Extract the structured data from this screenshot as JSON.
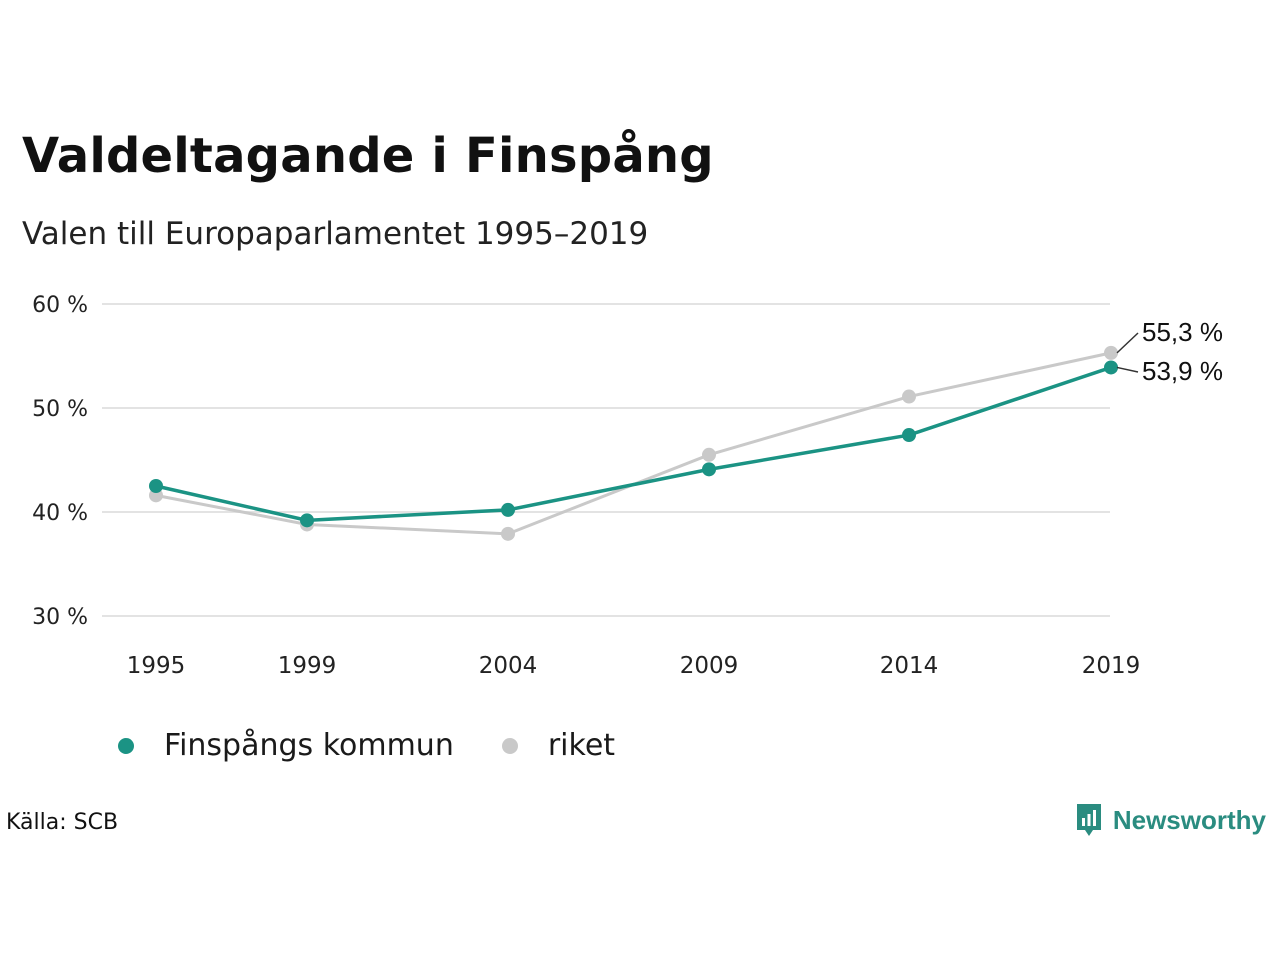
{
  "title": "Valdeltagande i Finspång",
  "subtitle": "Valen till Europaparlamentet 1995–2019",
  "source": "Källa: SCB",
  "brand": "Newsworthy",
  "colors": {
    "kommun": "#1b9384",
    "riket": "#c9c9c9",
    "grid": "#e3e3e3"
  },
  "chart_data": {
    "type": "line",
    "title": "Valdeltagande i Finspång",
    "subtitle": "Valen till Europaparlamentet 1995–2019",
    "x": [
      1995,
      1999,
      2004,
      2009,
      2014,
      2019
    ],
    "x_tick_labels": [
      "1995",
      "1999",
      "2004",
      "2009",
      "2014",
      "2019"
    ],
    "y_ticks": [
      30,
      40,
      50,
      60
    ],
    "y_tick_labels": [
      "30 %",
      "40 %",
      "50 %",
      "60 %"
    ],
    "ylim": [
      30,
      60
    ],
    "grid": true,
    "legend": "bottom",
    "series": [
      {
        "name": "Finspångs kommun",
        "values": [
          42.5,
          39.2,
          40.2,
          44.1,
          47.4,
          53.9
        ],
        "end_label": "53,9 %"
      },
      {
        "name": "riket",
        "values": [
          41.6,
          38.8,
          37.9,
          45.5,
          51.1,
          55.3
        ],
        "end_label": "55,3 %"
      }
    ]
  }
}
